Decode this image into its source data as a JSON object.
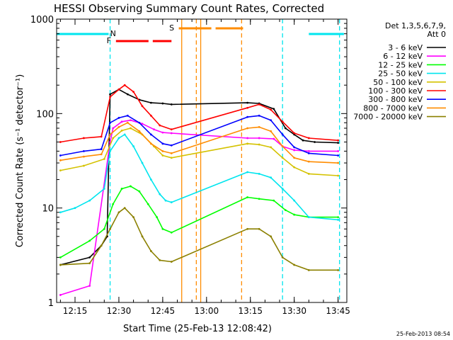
{
  "chart_data": {
    "type": "line",
    "title": "HESSI Observing Summary Count Rates, Corrected",
    "xlabel": "Start Time (25-Feb-13 12:08:42)",
    "ylabel": "Corrected Count Rate (s⁻¹ detector⁻¹)",
    "xscale": "time (minutes)",
    "yscale": "log",
    "xlim": [
      "12:08:42",
      "13:48:00"
    ],
    "ylim": [
      1,
      1000
    ],
    "x_ticks": [
      "12:15",
      "12:30",
      "12:45",
      "13:00",
      "13:15",
      "13:30",
      "13:45"
    ],
    "y_ticks": [
      "1",
      "10",
      "100",
      "1000"
    ],
    "grid": false,
    "legend_position": "right",
    "legend_header": [
      "Det 1,3,5,6,7,9,",
      "Att 0"
    ],
    "timestamp": "25-Feb-2013 08:54",
    "flags": [
      {
        "label": "N",
        "color": "#00e5ee",
        "style": "solid",
        "segments": [
          [
            "12:08:42",
            "12:26:30"
          ],
          [
            "13:35:00",
            "13:47:00"
          ]
        ]
      },
      {
        "label": "F",
        "color": "#ff0000",
        "style": "dashed",
        "segments": [
          [
            "12:29:00",
            "12:48:00"
          ]
        ]
      },
      {
        "label": "S",
        "color": "#ff8c00",
        "style": "dashed",
        "segments": [
          [
            "12:50:30",
            "13:12:30"
          ]
        ]
      }
    ],
    "markers": [
      {
        "color": "#00e5ee",
        "style": "dashed",
        "times": [
          "12:27:00",
          "13:26:00",
          "13:45:30"
        ]
      },
      {
        "color": "#ff8c00",
        "style": "solid",
        "times": [
          "12:51:30",
          "12:58:00"
        ]
      },
      {
        "color": "#ff8c00",
        "style": "dashed",
        "times": [
          "12:56:30",
          "13:12:00"
        ]
      }
    ],
    "series": [
      {
        "name": "3 - 6 keV",
        "color": "#000000",
        "points": [
          [
            "12:10",
            2.5
          ],
          [
            "12:20",
            3
          ],
          [
            "12:24",
            4
          ],
          [
            "12:26",
            5
          ],
          [
            "12:27",
            160
          ],
          [
            "12:30",
            180
          ],
          [
            "12:33",
            160
          ],
          [
            "12:37",
            140
          ],
          [
            "12:41",
            130
          ],
          [
            "12:45",
            128
          ],
          [
            "12:48",
            125
          ],
          [
            "13:14",
            130
          ],
          [
            "13:18",
            128
          ],
          [
            "13:23",
            112
          ],
          [
            "13:27",
            70
          ],
          [
            "13:30",
            60
          ],
          [
            "13:33",
            52
          ],
          [
            "13:37",
            50
          ],
          [
            "13:45",
            49
          ]
        ]
      },
      {
        "name": "6 - 12 keV",
        "color": "#ff00ff",
        "points": [
          [
            "12:10",
            1.2
          ],
          [
            "12:20",
            1.5
          ],
          [
            "12:27",
            50
          ],
          [
            "12:28",
            70
          ],
          [
            "12:31",
            82
          ],
          [
            "12:34",
            85
          ],
          [
            "12:38",
            78
          ],
          [
            "12:42",
            68
          ],
          [
            "12:45",
            63
          ],
          [
            "12:48",
            62
          ],
          [
            "13:14",
            55
          ],
          [
            "13:18",
            55
          ],
          [
            "13:23",
            54
          ],
          [
            "13:26",
            45
          ],
          [
            "13:30",
            41
          ],
          [
            "13:35",
            40
          ],
          [
            "13:45",
            40
          ]
        ]
      },
      {
        "name": "12 - 25 keV",
        "color": "#00ff00",
        "points": [
          [
            "12:10",
            3
          ],
          [
            "12:20",
            4.5
          ],
          [
            "12:25",
            6
          ],
          [
            "12:28",
            11
          ],
          [
            "12:31",
            16
          ],
          [
            "12:34",
            17
          ],
          [
            "12:37",
            15
          ],
          [
            "12:40",
            11
          ],
          [
            "12:43",
            8
          ],
          [
            "12:45",
            6
          ],
          [
            "12:48",
            5.5
          ],
          [
            "13:14",
            13
          ],
          [
            "13:18",
            12.5
          ],
          [
            "13:23",
            12
          ],
          [
            "13:27",
            9.5
          ],
          [
            "13:30",
            8.5
          ],
          [
            "13:35",
            8
          ],
          [
            "13:45",
            8
          ]
        ]
      },
      {
        "name": "25 - 50 keV",
        "color": "#00e5ee",
        "points": [
          [
            "12:10",
            9
          ],
          [
            "12:15",
            10
          ],
          [
            "12:20",
            12
          ],
          [
            "12:25",
            16
          ],
          [
            "12:27",
            40
          ],
          [
            "12:30",
            55
          ],
          [
            "12:32",
            60
          ],
          [
            "12:35",
            45
          ],
          [
            "12:38",
            30
          ],
          [
            "12:41",
            20
          ],
          [
            "12:44",
            14
          ],
          [
            "12:46",
            12
          ],
          [
            "12:48",
            11.5
          ],
          [
            "13:14",
            24
          ],
          [
            "13:18",
            23
          ],
          [
            "13:22",
            21
          ],
          [
            "13:26",
            16
          ],
          [
            "13:30",
            12
          ],
          [
            "13:35",
            8
          ],
          [
            "13:45",
            7.5
          ]
        ]
      },
      {
        "name": "50 - 100 keV",
        "color": "#d4c200",
        "points": [
          [
            "12:10",
            25
          ],
          [
            "12:18",
            28
          ],
          [
            "12:25",
            33
          ],
          [
            "12:28",
            55
          ],
          [
            "12:31",
            66
          ],
          [
            "12:34",
            70
          ],
          [
            "12:38",
            60
          ],
          [
            "12:42",
            45
          ],
          [
            "12:45",
            36
          ],
          [
            "12:48",
            34
          ],
          [
            "13:14",
            48
          ],
          [
            "13:18",
            47
          ],
          [
            "13:22",
            44
          ],
          [
            "13:26",
            34
          ],
          [
            "13:30",
            27
          ],
          [
            "13:35",
            23
          ],
          [
            "13:45",
            22
          ]
        ]
      },
      {
        "name": "100 - 300 keV",
        "color": "#ff0000",
        "points": [
          [
            "12:10",
            50
          ],
          [
            "12:18",
            55
          ],
          [
            "12:24",
            57
          ],
          [
            "12:27",
            150
          ],
          [
            "12:30",
            180
          ],
          [
            "12:32",
            200
          ],
          [
            "12:35",
            170
          ],
          [
            "12:38",
            120
          ],
          [
            "12:41",
            95
          ],
          [
            "12:44",
            75
          ],
          [
            "12:48",
            68
          ],
          [
            "13:14",
            115
          ],
          [
            "13:18",
            125
          ],
          [
            "13:22",
            110
          ],
          [
            "13:26",
            82
          ],
          [
            "13:30",
            62
          ],
          [
            "13:35",
            55
          ],
          [
            "13:45",
            52
          ]
        ]
      },
      {
        "name": "300 - 800 keV",
        "color": "#0000ff",
        "points": [
          [
            "12:10",
            36
          ],
          [
            "12:18",
            40
          ],
          [
            "12:24",
            42
          ],
          [
            "12:27",
            80
          ],
          [
            "12:30",
            90
          ],
          [
            "12:33",
            95
          ],
          [
            "12:37",
            80
          ],
          [
            "12:41",
            60
          ],
          [
            "12:45",
            48
          ],
          [
            "12:48",
            46
          ],
          [
            "13:14",
            92
          ],
          [
            "13:18",
            95
          ],
          [
            "13:22",
            85
          ],
          [
            "13:26",
            60
          ],
          [
            "13:30",
            44
          ],
          [
            "13:35",
            38
          ],
          [
            "13:45",
            36
          ]
        ]
      },
      {
        "name": "800 - 7000 keV",
        "color": "#ff8c00",
        "points": [
          [
            "12:10",
            32
          ],
          [
            "12:18",
            35
          ],
          [
            "12:24",
            37
          ],
          [
            "12:27",
            60
          ],
          [
            "12:30",
            72
          ],
          [
            "12:33",
            80
          ],
          [
            "12:37",
            65
          ],
          [
            "12:41",
            48
          ],
          [
            "12:45",
            40
          ],
          [
            "12:48",
            38
          ],
          [
            "13:14",
            70
          ],
          [
            "13:18",
            72
          ],
          [
            "13:22",
            65
          ],
          [
            "13:26",
            45
          ],
          [
            "13:30",
            34
          ],
          [
            "13:35",
            31
          ],
          [
            "13:45",
            30
          ]
        ]
      },
      {
        "name": "7000 - 20000 keV",
        "color": "#8b8000",
        "points": [
          [
            "12:10",
            2.5
          ],
          [
            "12:20",
            2.6
          ],
          [
            "12:24",
            4
          ],
          [
            "12:27",
            6
          ],
          [
            "12:30",
            9
          ],
          [
            "12:32",
            10
          ],
          [
            "12:35",
            8
          ],
          [
            "12:38",
            5
          ],
          [
            "12:41",
            3.5
          ],
          [
            "12:44",
            2.8
          ],
          [
            "12:48",
            2.7
          ],
          [
            "13:14",
            6
          ],
          [
            "13:18",
            6
          ],
          [
            "13:22",
            5
          ],
          [
            "13:26",
            3
          ],
          [
            "13:30",
            2.5
          ],
          [
            "13:35",
            2.2
          ],
          [
            "13:45",
            2.2
          ]
        ]
      }
    ]
  }
}
